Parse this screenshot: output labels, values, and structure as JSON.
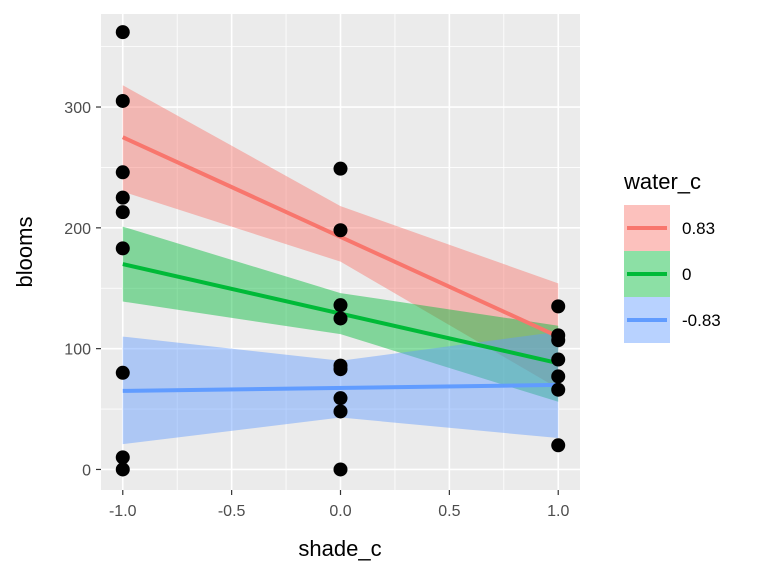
{
  "chart_data": {
    "type": "scatter",
    "xlabel": "shade_c",
    "ylabel": "blooms",
    "xlim": [
      -1.1,
      1.1
    ],
    "ylim": [
      -17,
      377
    ],
    "x_ticks": [
      -1.0,
      -0.5,
      0.0,
      0.5,
      1.0
    ],
    "x_tick_labels": [
      "-1.0",
      "-0.5",
      "0.0",
      "0.5",
      "1.0"
    ],
    "y_ticks": [
      0,
      100,
      200,
      300
    ],
    "y_tick_labels": [
      "0",
      "100",
      "200",
      "300"
    ],
    "grid": true,
    "legend": {
      "title": "water_c",
      "position": "right"
    },
    "points": [
      {
        "x": -1,
        "y": 362
      },
      {
        "x": -1,
        "y": 305
      },
      {
        "x": -1,
        "y": 246
      },
      {
        "x": -1,
        "y": 225
      },
      {
        "x": -1,
        "y": 213
      },
      {
        "x": -1,
        "y": 183
      },
      {
        "x": -1,
        "y": 80
      },
      {
        "x": -1,
        "y": 10
      },
      {
        "x": -1,
        "y": 0
      },
      {
        "x": 0,
        "y": 249
      },
      {
        "x": 0,
        "y": 198
      },
      {
        "x": 0,
        "y": 136
      },
      {
        "x": 0,
        "y": 125
      },
      {
        "x": 0,
        "y": 86
      },
      {
        "x": 0,
        "y": 83
      },
      {
        "x": 0,
        "y": 59
      },
      {
        "x": 0,
        "y": 48
      },
      {
        "x": 0,
        "y": 0
      },
      {
        "x": 1,
        "y": 135
      },
      {
        "x": 1,
        "y": 111
      },
      {
        "x": 1,
        "y": 107
      },
      {
        "x": 1,
        "y": 91
      },
      {
        "x": 1,
        "y": 77
      },
      {
        "x": 1,
        "y": 66
      },
      {
        "x": 1,
        "y": 20
      }
    ],
    "series": [
      {
        "name": "0.83",
        "color": "#F8766D",
        "fit": [
          {
            "x": -1,
            "y": 275
          },
          {
            "x": 1,
            "y": 110
          }
        ],
        "ribbon": [
          {
            "x": -1,
            "lo": 230,
            "hi": 318
          },
          {
            "x": 0,
            "lo": 172,
            "hi": 218
          },
          {
            "x": 1,
            "lo": 67,
            "hi": 154
          }
        ]
      },
      {
        "name": "0",
        "color": "#00BA38",
        "fit": [
          {
            "x": -1,
            "y": 170
          },
          {
            "x": 1,
            "y": 88
          }
        ],
        "ribbon": [
          {
            "x": -1,
            "lo": 139,
            "hi": 201
          },
          {
            "x": 0,
            "lo": 112,
            "hi": 146
          },
          {
            "x": 1,
            "lo": 56,
            "hi": 119
          }
        ]
      },
      {
        "name": "-0.83",
        "color": "#619CFF",
        "fit": [
          {
            "x": -1,
            "y": 65
          },
          {
            "x": 1,
            "y": 70
          }
        ],
        "ribbon": [
          {
            "x": -1,
            "lo": 21,
            "hi": 110
          },
          {
            "x": 0,
            "lo": 43,
            "hi": 90
          },
          {
            "x": 1,
            "lo": 26,
            "hi": 114
          }
        ]
      }
    ]
  }
}
